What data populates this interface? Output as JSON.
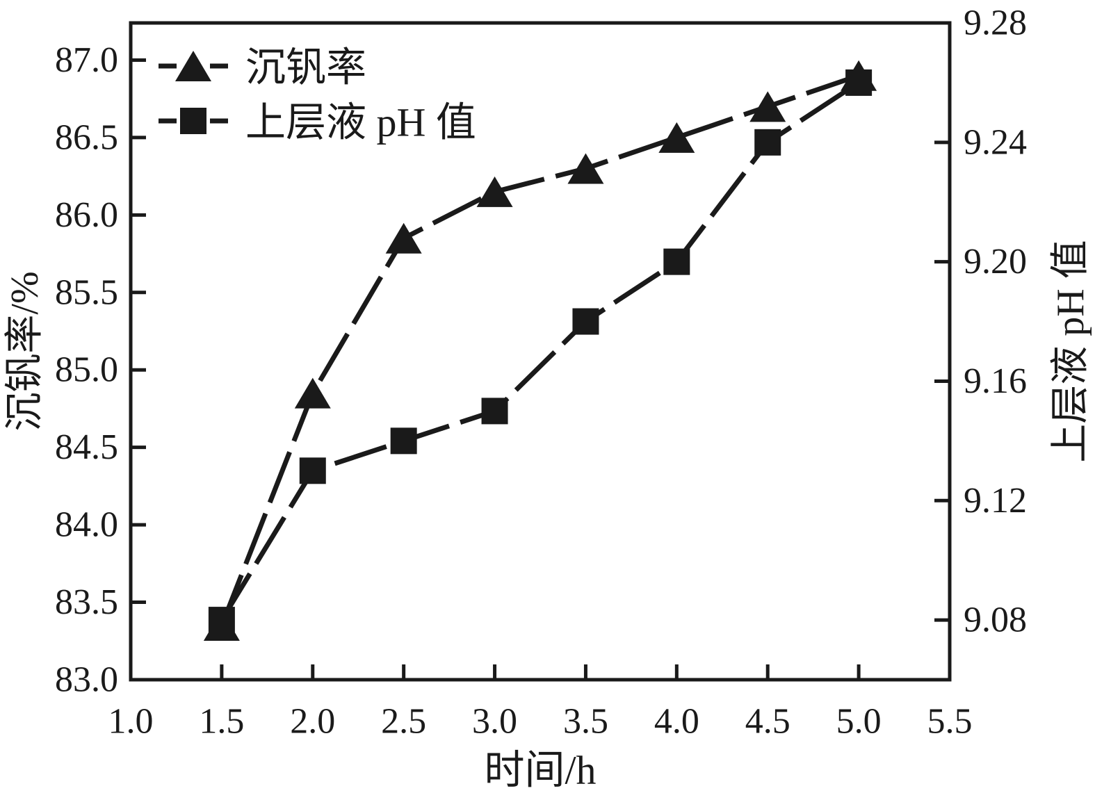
{
  "figure": {
    "background": "#ffffff",
    "ink_color": "#1a1a1a"
  },
  "chart_data": {
    "type": "line",
    "x": [
      1.5,
      2.0,
      2.5,
      3.0,
      3.5,
      4.0,
      4.5,
      5.0
    ],
    "series": [
      {
        "name": "沉钒率",
        "axis": "left",
        "marker": "triangle",
        "line_style": "dashed",
        "color": "#1a1a1a",
        "values": [
          83.35,
          84.85,
          85.85,
          86.15,
          86.3,
          86.5,
          86.7,
          86.9
        ]
      },
      {
        "name": "上层液 pH 值",
        "axis": "right",
        "marker": "square",
        "line_style": "dashed",
        "color": "#1a1a1a",
        "values": [
          9.08,
          9.13,
          9.14,
          9.15,
          9.18,
          9.2,
          9.24,
          9.26
        ]
      }
    ],
    "xlabel": "时间/h",
    "ylabel_left": "沉钒率/%",
    "ylabel_right": "上层液 pH 值",
    "xlim": [
      1.0,
      5.5
    ],
    "ylim_left": [
      83.0,
      87.24
    ],
    "ylim_right": [
      9.06,
      9.28
    ],
    "xticks": {
      "values": [
        1.0,
        1.5,
        2.0,
        2.5,
        3.0,
        3.5,
        4.0,
        4.5,
        5.0,
        5.5
      ],
      "labels": [
        "1.0",
        "1.5",
        "2.0",
        "2.5",
        "3.0",
        "3.5",
        "4.0",
        "4.5",
        "5.0",
        "5.5"
      ]
    },
    "yticks_left": {
      "values": [
        87.0,
        86.5,
        86.0,
        85.5,
        85.0,
        84.5,
        84.0,
        83.5,
        83.0
      ],
      "labels": [
        "87.0",
        "86.5",
        "86.0",
        "85.5",
        "85.0",
        "84.5",
        "84.0",
        "83.5",
        "83.0"
      ]
    },
    "yticks_right": {
      "values": [
        9.28,
        9.24,
        9.2,
        9.16,
        9.12,
        9.08
      ],
      "labels": [
        "9.28",
        "9.24",
        "9.20",
        "9.16",
        "9.12",
        "9.08"
      ]
    },
    "legend": {
      "position": "top-left",
      "entries": [
        {
          "label": "沉钒率",
          "marker": "triangle"
        },
        {
          "label": "上层液 pH 值",
          "marker": "square"
        }
      ]
    },
    "grid": false
  }
}
